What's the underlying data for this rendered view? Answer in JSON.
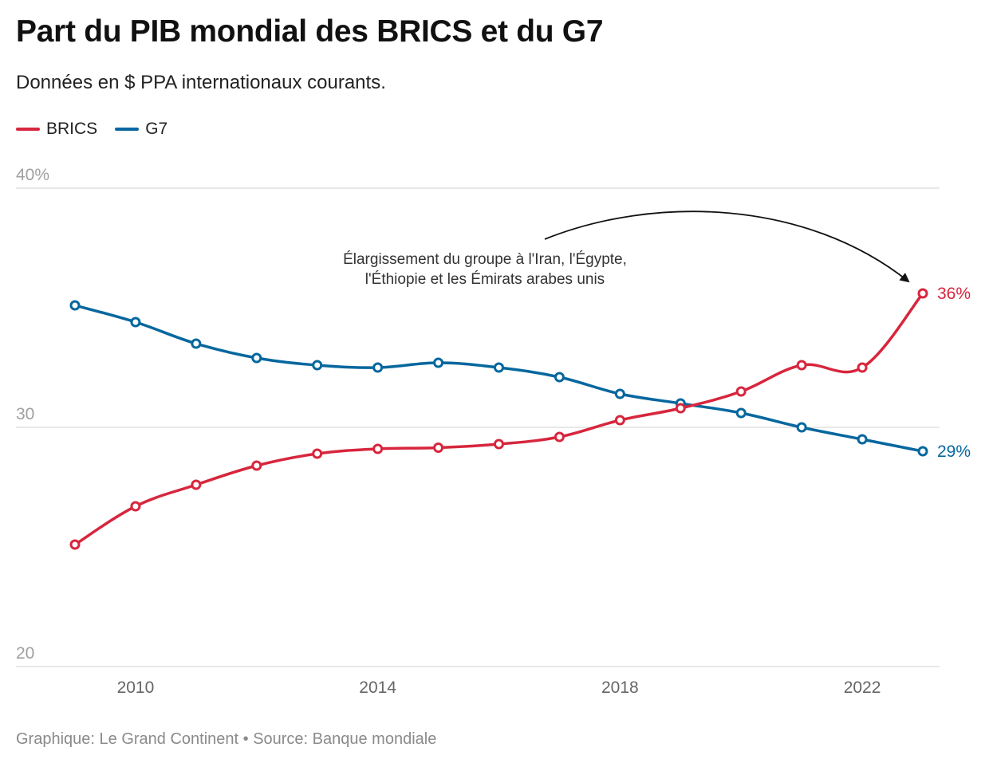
{
  "title": "Part du PIB mondial des BRICS et du G7",
  "subtitle": "Données en $ PPA internationaux courants.",
  "source": "Graphique: Le Grand Continent • Source: Banque mondiale",
  "colors": {
    "brics": "#d7263d",
    "g7": "#05679e",
    "grid": "#d9d9d9",
    "tick": "#a0a0a0",
    "xtick": "#666666"
  },
  "chart_data": {
    "type": "line",
    "title": "Part du PIB mondial des BRICS et du G7",
    "x": [
      2009,
      2010,
      2011,
      2012,
      2013,
      2014,
      2015,
      2016,
      2017,
      2018,
      2019,
      2020,
      2021,
      2022,
      2023
    ],
    "series": [
      {
        "name": "BRICS",
        "values": [
          25.1,
          26.7,
          27.6,
          28.4,
          28.9,
          29.1,
          29.15,
          29.3,
          29.6,
          30.3,
          30.8,
          31.5,
          32.6,
          32.5,
          35.6
        ]
      },
      {
        "name": "G7",
        "values": [
          35.1,
          34.4,
          33.5,
          32.9,
          32.6,
          32.5,
          32.7,
          32.5,
          32.1,
          31.4,
          31.0,
          30.6,
          30.0,
          29.5,
          29.0
        ]
      }
    ],
    "yticks": [
      "40%",
      "30",
      "20"
    ],
    "xticks": [
      "2010",
      "2014",
      "2018",
      "2022"
    ],
    "ylim": [
      20,
      40
    ],
    "xlim": [
      2009,
      2023
    ],
    "end_labels": {
      "BRICS": "36%",
      "G7": "29%"
    },
    "annotation": {
      "line1": "Élargissement du groupe à l'Iran, l'Égypte,",
      "line2": "l'Éthiopie et les Émirats arabes unis"
    },
    "grid": true,
    "legend_position": "top-left"
  }
}
